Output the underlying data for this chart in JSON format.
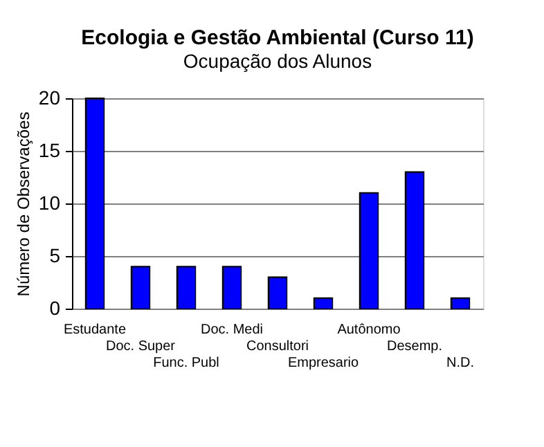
{
  "chart_data": {
    "type": "bar",
    "title": "Ecologia e Gestão Ambiental (Curso 11)",
    "subtitle": "Ocupação dos Alunos",
    "ylabel": "Número de Observações",
    "categories": [
      "Estudante",
      "Doc. Super",
      "Func. Publ",
      "Doc. Medi",
      "Consultori",
      "Empresario",
      "Autônomo",
      "Desemp.",
      "N.D."
    ],
    "values": [
      20,
      4,
      4,
      4,
      3,
      1,
      11,
      13,
      1
    ],
    "color": "#0000ff",
    "ylim": [
      0,
      20
    ],
    "yticks": [
      0,
      5,
      10,
      15,
      20
    ],
    "grid": "y"
  }
}
